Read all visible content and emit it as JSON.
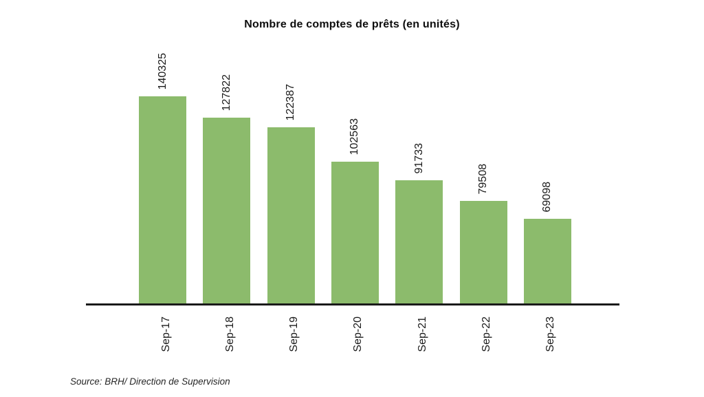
{
  "title": "Nombre de comptes de prêts (en unités)",
  "source_note": "Source: BRH/ Direction de Supervision",
  "colors": {
    "bar": "#8cbb6c",
    "axis": "#1a1a1a",
    "text": "#1a1a1a",
    "background": "#ffffff"
  },
  "chart_data": {
    "type": "bar",
    "title": "Nombre de comptes de prêts (en unités)",
    "categories": [
      "Sep-17",
      "Sep-18",
      "Sep-19",
      "Sep-20",
      "Sep-21",
      "Sep-22",
      "Sep-23"
    ],
    "values": [
      140325,
      127822,
      122387,
      102563,
      91733,
      79508,
      69098
    ],
    "xlabel": "",
    "ylabel": "",
    "ylim": [
      20000,
      160000
    ],
    "bar_color": "#8cbb6c",
    "data_labels": "values shown rotated 90° above each bar",
    "tick_label_rotation": -90,
    "grid": false,
    "legend": false,
    "source": "Source: BRH/ Direction de Supervision"
  }
}
